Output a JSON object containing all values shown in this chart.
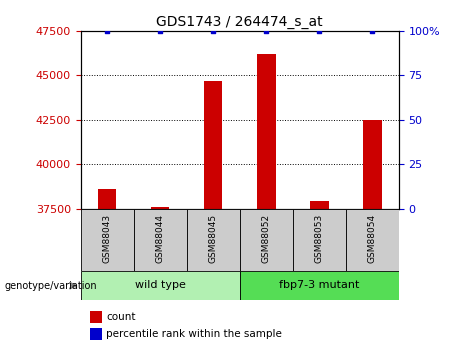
{
  "title": "GDS1743 / 264474_s_at",
  "samples": [
    "GSM88043",
    "GSM88044",
    "GSM88045",
    "GSM88052",
    "GSM88053",
    "GSM88054"
  ],
  "count_values": [
    38600,
    37620,
    44700,
    46200,
    37950,
    42500
  ],
  "percentile_values": [
    100,
    100,
    100,
    100,
    100,
    100
  ],
  "ylim_left": [
    37500,
    47500
  ],
  "ylim_right": [
    0,
    100
  ],
  "yticks_left": [
    37500,
    40000,
    42500,
    45000,
    47500
  ],
  "yticks_right": [
    0,
    25,
    50,
    75,
    100
  ],
  "ytick_labels_right": [
    "0",
    "25",
    "50",
    "75",
    "100%"
  ],
  "bar_color": "#cc0000",
  "dot_color": "#0000cc",
  "groups": [
    {
      "label": "wild type",
      "samples": [
        0,
        1,
        2
      ],
      "color": "#b2f0b2"
    },
    {
      "label": "fbp7-3 mutant",
      "samples": [
        3,
        4,
        5
      ],
      "color": "#55dd55"
    }
  ],
  "group_label_prefix": "genotype/variation",
  "legend_count_label": "count",
  "legend_percentile_label": "percentile rank within the sample",
  "left_tick_color": "#cc0000",
  "right_tick_color": "#0000cc",
  "grid_color": "#000000",
  "bar_width": 0.35,
  "dot_size": 8,
  "sample_cell_color": "#cccccc"
}
